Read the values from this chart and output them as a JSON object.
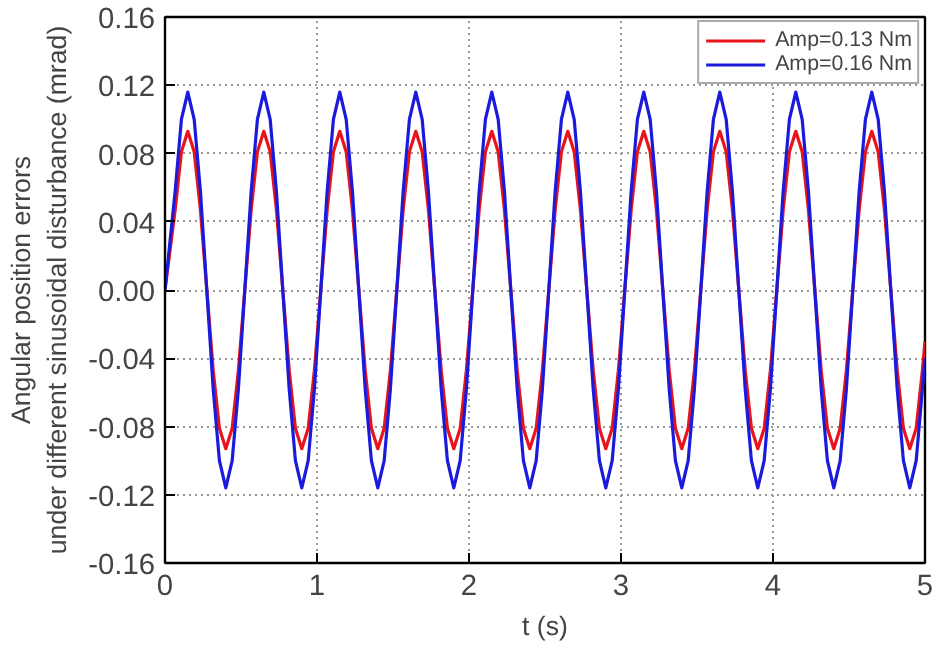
{
  "chart_data": {
    "type": "line",
    "xlabel": "t (s)",
    "ylabel": "Angular position errors\nunder different sinusoidal disturbance (mrad)",
    "x": [
      0,
      0.067,
      0.108,
      0.15,
      0.192,
      0.233,
      0.275,
      0.317,
      0.358,
      0.4,
      0.442,
      0.483,
      0.525,
      0.567,
      0.608,
      0.65,
      0.692,
      0.733,
      0.775,
      0.817,
      0.858,
      0.9,
      0.942,
      0.983,
      1.025,
      1.067,
      1.108,
      1.15,
      1.192,
      1.233,
      1.275,
      1.317,
      1.358,
      1.4,
      1.442,
      1.483,
      1.525,
      1.567,
      1.608,
      1.65,
      1.692,
      1.733,
      1.775,
      1.817,
      1.858,
      1.9,
      1.942,
      1.983,
      2.025,
      2.067,
      2.108,
      2.15,
      2.192,
      2.233,
      2.275,
      2.317,
      2.358,
      2.4,
      2.442,
      2.483,
      2.525,
      2.567,
      2.608,
      2.65,
      2.692,
      2.733,
      2.775,
      2.817,
      2.858,
      2.9,
      2.942,
      2.983,
      3.025,
      3.067,
      3.108,
      3.15,
      3.192,
      3.233,
      3.275,
      3.317,
      3.358,
      3.4,
      3.442,
      3.483,
      3.525,
      3.567,
      3.608,
      3.65,
      3.692,
      3.733,
      3.775,
      3.817,
      3.858,
      3.9,
      3.942,
      3.983,
      4.025,
      4.067,
      4.108,
      4.15,
      4.192,
      4.233,
      4.275,
      4.317,
      4.358,
      4.4,
      4.442,
      4.483,
      4.525,
      4.567,
      4.608,
      4.65,
      4.692,
      4.733,
      4.775,
      4.817,
      4.858,
      4.9,
      4.942,
      4.983,
      5
    ],
    "series": [
      {
        "name": "Amp=0.13 Nm",
        "color": "#e8141a",
        "values": [
          0,
          0.047,
          0.081,
          0.093,
          0.081,
          0.047,
          0,
          -0.047,
          -0.081,
          -0.093,
          -0.081,
          -0.047,
          0,
          0.047,
          0.081,
          0.093,
          0.081,
          0.047,
          0,
          -0.047,
          -0.081,
          -0.093,
          -0.081,
          -0.047,
          0,
          0.047,
          0.081,
          0.093,
          0.081,
          0.047,
          0,
          -0.047,
          -0.081,
          -0.093,
          -0.081,
          -0.047,
          0,
          0.047,
          0.081,
          0.093,
          0.081,
          0.047,
          0,
          -0.047,
          -0.081,
          -0.093,
          -0.081,
          -0.047,
          0,
          0.047,
          0.081,
          0.093,
          0.081,
          0.047,
          0,
          -0.047,
          -0.081,
          -0.093,
          -0.081,
          -0.047,
          0,
          0.047,
          0.081,
          0.093,
          0.081,
          0.047,
          0,
          -0.047,
          -0.081,
          -0.093,
          -0.081,
          -0.047,
          0,
          0.047,
          0.081,
          0.093,
          0.081,
          0.047,
          0,
          -0.047,
          -0.081,
          -0.093,
          -0.081,
          -0.047,
          0,
          0.047,
          0.081,
          0.093,
          0.081,
          0.047,
          0,
          -0.047,
          -0.081,
          -0.093,
          -0.081,
          -0.047,
          0,
          0.047,
          0.081,
          0.093,
          0.081,
          0.047,
          0,
          -0.047,
          -0.081,
          -0.093,
          -0.081,
          -0.047,
          0,
          0.047,
          0.081,
          0.093,
          0.081,
          0.047,
          0,
          -0.047,
          -0.081,
          -0.093,
          -0.081,
          -0.047,
          -0.03
        ]
      },
      {
        "name": "Amp=0.16 Nm",
        "color": "#1a1adc",
        "values": [
          0,
          0.058,
          0.1,
          0.116,
          0.1,
          0.058,
          0,
          -0.058,
          -0.1,
          -0.116,
          -0.1,
          -0.058,
          0,
          0.058,
          0.1,
          0.116,
          0.1,
          0.058,
          0,
          -0.058,
          -0.1,
          -0.116,
          -0.1,
          -0.058,
          0,
          0.058,
          0.1,
          0.116,
          0.1,
          0.058,
          0,
          -0.058,
          -0.1,
          -0.116,
          -0.1,
          -0.058,
          0,
          0.058,
          0.1,
          0.116,
          0.1,
          0.058,
          0,
          -0.058,
          -0.1,
          -0.116,
          -0.1,
          -0.058,
          0,
          0.058,
          0.1,
          0.116,
          0.1,
          0.058,
          0,
          -0.058,
          -0.1,
          -0.116,
          -0.1,
          -0.058,
          0,
          0.058,
          0.1,
          0.116,
          0.1,
          0.058,
          0,
          -0.058,
          -0.1,
          -0.116,
          -0.1,
          -0.058,
          0,
          0.058,
          0.1,
          0.116,
          0.1,
          0.058,
          0,
          -0.058,
          -0.1,
          -0.116,
          -0.1,
          -0.058,
          0,
          0.058,
          0.1,
          0.116,
          0.1,
          0.058,
          0,
          -0.058,
          -0.1,
          -0.116,
          -0.1,
          -0.058,
          0,
          0.058,
          0.1,
          0.116,
          0.1,
          0.058,
          0,
          -0.058,
          -0.1,
          -0.116,
          -0.1,
          -0.058,
          0,
          0.058,
          0.1,
          0.116,
          0.1,
          0.058,
          0,
          -0.058,
          -0.1,
          -0.116,
          -0.1,
          -0.058,
          -0.04
        ]
      }
    ],
    "xlim": [
      0,
      5
    ],
    "xticks": [
      0,
      1,
      2,
      3,
      4,
      5
    ],
    "ylim": [
      -0.16,
      0.16
    ],
    "yticks": [
      -0.16,
      -0.12,
      -0.08,
      -0.04,
      {
        "value": 0,
        "label": "0.00"
      },
      0.04,
      0.08,
      0.12,
      0.16
    ],
    "grid": true,
    "legend": "top right",
    "line_style": "solid",
    "marker": "none"
  }
}
